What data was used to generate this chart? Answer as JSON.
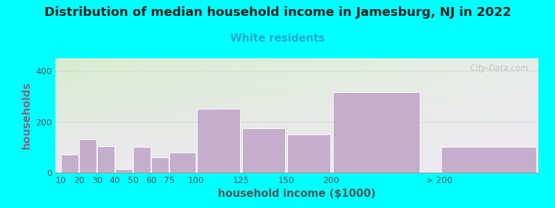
{
  "title": "Distribution of median household income in Jamesburg, NJ in 2022",
  "subtitle": "White residents",
  "xlabel": "household income ($1000)",
  "ylabel": "households",
  "background_outer": "#00FFFF",
  "bar_color": "#C4AECC",
  "bar_edgecolor": "#FFFFFF",
  "plot_bg_top_left": "#D8EDD0",
  "plot_bg_top_right": "#E8F0E8",
  "plot_bg_bottom": "#EDE8F0",
  "categories": [
    "10",
    "20",
    "30",
    "40",
    "50",
    "60",
    "75",
    "100",
    "125",
    "150",
    "200",
    "> 200"
  ],
  "values": [
    70,
    130,
    105,
    15,
    100,
    60,
    80,
    250,
    175,
    150,
    315,
    100
  ],
  "ylim": [
    0,
    450
  ],
  "yticks": [
    0,
    200,
    400
  ],
  "title_fontsize": 13,
  "subtitle_fontsize": 11,
  "axis_label_fontsize": 11,
  "tick_fontsize": 9,
  "watermark": "  City-Data.com"
}
